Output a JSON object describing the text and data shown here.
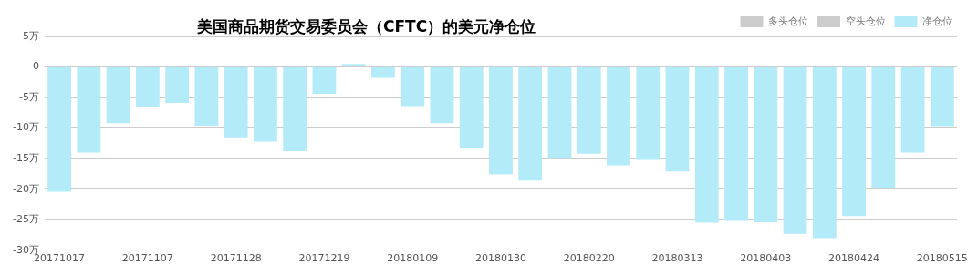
{
  "chart_data": {
    "type": "bar",
    "title": "美国商品期货交易委员会（CFTC）的美元净仓位",
    "categories": [
      "20171017",
      null,
      null,
      "20171107",
      null,
      null,
      "20171128",
      null,
      null,
      "20171219",
      null,
      null,
      "20180109",
      null,
      null,
      "20180130",
      null,
      null,
      "20180220",
      null,
      null,
      "20180313",
      null,
      null,
      "20180403",
      null,
      null,
      "20180424",
      null,
      null,
      "20180515"
    ],
    "series": [
      {
        "name": "多头仓位",
        "color": "#cccccc",
        "values": [
          null,
          null,
          null,
          null,
          null,
          null,
          null,
          null,
          null,
          null,
          null,
          null,
          null,
          null,
          null,
          null,
          null,
          null,
          null,
          null,
          null,
          null,
          null,
          null,
          null,
          null,
          null,
          null,
          null,
          null,
          null
        ]
      },
      {
        "name": "空头仓位",
        "color": "#cccccc",
        "values": [
          null,
          null,
          null,
          null,
          null,
          null,
          null,
          null,
          null,
          null,
          null,
          null,
          null,
          null,
          null,
          null,
          null,
          null,
          null,
          null,
          null,
          null,
          null,
          null,
          null,
          null,
          null,
          null,
          null,
          null,
          null
        ]
      },
      {
        "name": "净仓位",
        "color": "#b3ebf9",
        "values": [
          -20.4,
          -14.0,
          -9.2,
          -6.6,
          -5.9,
          -9.6,
          -11.5,
          -12.2,
          -13.8,
          -4.4,
          0.5,
          -1.8,
          -6.4,
          -9.2,
          -13.2,
          -17.6,
          -18.6,
          -15.0,
          -14.2,
          -16.1,
          -15.2,
          -17.1,
          -25.5,
          -25.2,
          -25.4,
          -27.3,
          -28.0,
          -24.4,
          -19.8,
          -14.0,
          -9.7
        ]
      }
    ],
    "ylim": [
      -30,
      5
    ],
    "yticks": [
      {
        "value": -30,
        "label": "-30万"
      },
      {
        "value": -25,
        "label": "-25万"
      },
      {
        "value": -20,
        "label": "-20万"
      },
      {
        "value": -15,
        "label": "-15万"
      },
      {
        "value": -10,
        "label": "-10万"
      },
      {
        "value": -5,
        "label": "-5万"
      },
      0,
      {
        "value": 5,
        "label": "5万"
      }
    ],
    "grid": "y",
    "legend": "top right"
  }
}
